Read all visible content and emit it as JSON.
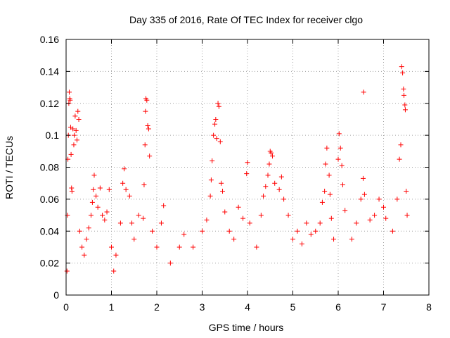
{
  "chart_data": {
    "type": "scatter",
    "title": "Day 335 of 2016, Rate Of TEC Index for receiver clgo",
    "xlabel": "GPS time / hours",
    "ylabel": "ROTI / TECUs",
    "xlim": [
      0,
      8
    ],
    "ylim": [
      0,
      0.16
    ],
    "grid": true,
    "marker": "plus",
    "color": "#ff0000",
    "x_ticks": [
      0,
      1,
      2,
      3,
      4,
      5,
      6,
      7,
      8
    ],
    "x_tick_labels": [
      "0",
      "1",
      "2",
      "3",
      "4",
      "5",
      "6",
      "7",
      "8"
    ],
    "y_ticks": [
      0,
      0.02,
      0.04,
      0.06,
      0.08,
      0.1,
      0.12,
      0.14,
      0.16
    ],
    "y_tick_labels": [
      "0",
      "0.02",
      "0.04",
      "0.06",
      "0.08",
      "0.1",
      "0.12",
      "0.14",
      "0.16"
    ],
    "series": [
      {
        "name": "ROTI",
        "points": [
          [
            0.02,
            0.015
          ],
          [
            0.03,
            0.05
          ],
          [
            0.04,
            0.085
          ],
          [
            0.05,
            0.1
          ],
          [
            0.06,
            0.12
          ],
          [
            0.07,
            0.127
          ],
          [
            0.08,
            0.123
          ],
          [
            0.09,
            0.122
          ],
          [
            0.1,
            0.105
          ],
          [
            0.11,
            0.088
          ],
          [
            0.12,
            0.067
          ],
          [
            0.13,
            0.065
          ],
          [
            0.15,
            0.104
          ],
          [
            0.17,
            0.094
          ],
          [
            0.18,
            0.1
          ],
          [
            0.2,
            0.112
          ],
          [
            0.22,
            0.103
          ],
          [
            0.24,
            0.097
          ],
          [
            0.26,
            0.115
          ],
          [
            0.28,
            0.11
          ],
          [
            0.3,
            0.04
          ],
          [
            0.35,
            0.03
          ],
          [
            0.4,
            0.025
          ],
          [
            0.45,
            0.035
          ],
          [
            0.5,
            0.042
          ],
          [
            0.55,
            0.05
          ],
          [
            0.58,
            0.058
          ],
          [
            0.6,
            0.066
          ],
          [
            0.62,
            0.075
          ],
          [
            0.66,
            0.062
          ],
          [
            0.7,
            0.055
          ],
          [
            0.75,
            0.067
          ],
          [
            0.8,
            0.05
          ],
          [
            0.85,
            0.047
          ],
          [
            0.9,
            0.052
          ],
          [
            0.95,
            0.066
          ],
          [
            1.0,
            0.03
          ],
          [
            1.05,
            0.015
          ],
          [
            1.1,
            0.025
          ],
          [
            1.2,
            0.045
          ],
          [
            1.25,
            0.07
          ],
          [
            1.28,
            0.079
          ],
          [
            1.32,
            0.066
          ],
          [
            1.4,
            0.062
          ],
          [
            1.45,
            0.045
          ],
          [
            1.5,
            0.035
          ],
          [
            1.6,
            0.05
          ],
          [
            1.7,
            0.048
          ],
          [
            1.72,
            0.069
          ],
          [
            1.74,
            0.094
          ],
          [
            1.75,
            0.115
          ],
          [
            1.76,
            0.123
          ],
          [
            1.78,
            0.122
          ],
          [
            1.8,
            0.106
          ],
          [
            1.82,
            0.104
          ],
          [
            1.84,
            0.087
          ],
          [
            1.9,
            0.04
          ],
          [
            2.0,
            0.03
          ],
          [
            2.1,
            0.045
          ],
          [
            2.15,
            0.056
          ],
          [
            2.3,
            0.02
          ],
          [
            2.5,
            0.03
          ],
          [
            2.6,
            0.038
          ],
          [
            2.8,
            0.03
          ],
          [
            3.0,
            0.04
          ],
          [
            3.1,
            0.047
          ],
          [
            3.18,
            0.062
          ],
          [
            3.2,
            0.072
          ],
          [
            3.22,
            0.084
          ],
          [
            3.25,
            0.1
          ],
          [
            3.28,
            0.107
          ],
          [
            3.3,
            0.11
          ],
          [
            3.32,
            0.098
          ],
          [
            3.35,
            0.12
          ],
          [
            3.37,
            0.118
          ],
          [
            3.4,
            0.096
          ],
          [
            3.42,
            0.07
          ],
          [
            3.45,
            0.065
          ],
          [
            3.5,
            0.052
          ],
          [
            3.6,
            0.04
          ],
          [
            3.7,
            0.035
          ],
          [
            3.8,
            0.055
          ],
          [
            3.9,
            0.048
          ],
          [
            3.98,
            0.076
          ],
          [
            4.0,
            0.083
          ],
          [
            4.05,
            0.045
          ],
          [
            4.2,
            0.03
          ],
          [
            4.3,
            0.05
          ],
          [
            4.35,
            0.062
          ],
          [
            4.4,
            0.068
          ],
          [
            4.45,
            0.075
          ],
          [
            4.48,
            0.082
          ],
          [
            4.5,
            0.09
          ],
          [
            4.52,
            0.089
          ],
          [
            4.55,
            0.087
          ],
          [
            4.6,
            0.07
          ],
          [
            4.7,
            0.066
          ],
          [
            4.75,
            0.074
          ],
          [
            4.8,
            0.06
          ],
          [
            4.9,
            0.05
          ],
          [
            5.0,
            0.035
          ],
          [
            5.1,
            0.04
          ],
          [
            5.2,
            0.032
          ],
          [
            5.3,
            0.045
          ],
          [
            5.4,
            0.038
          ],
          [
            5.5,
            0.04
          ],
          [
            5.6,
            0.045
          ],
          [
            5.65,
            0.058
          ],
          [
            5.7,
            0.065
          ],
          [
            5.72,
            0.082
          ],
          [
            5.75,
            0.092
          ],
          [
            5.8,
            0.075
          ],
          [
            5.82,
            0.063
          ],
          [
            5.85,
            0.048
          ],
          [
            5.9,
            0.035
          ],
          [
            6.0,
            0.085
          ],
          [
            6.02,
            0.101
          ],
          [
            6.05,
            0.092
          ],
          [
            6.08,
            0.081
          ],
          [
            6.1,
            0.069
          ],
          [
            6.15,
            0.053
          ],
          [
            6.3,
            0.035
          ],
          [
            6.4,
            0.045
          ],
          [
            6.5,
            0.06
          ],
          [
            6.55,
            0.073
          ],
          [
            6.56,
            0.127
          ],
          [
            6.58,
            0.063
          ],
          [
            6.7,
            0.047
          ],
          [
            6.8,
            0.05
          ],
          [
            6.9,
            0.06
          ],
          [
            7.0,
            0.055
          ],
          [
            7.05,
            0.048
          ],
          [
            7.2,
            0.04
          ],
          [
            7.3,
            0.06
          ],
          [
            7.35,
            0.085
          ],
          [
            7.38,
            0.094
          ],
          [
            7.4,
            0.143
          ],
          [
            7.42,
            0.139
          ],
          [
            7.44,
            0.129
          ],
          [
            7.45,
            0.125
          ],
          [
            7.47,
            0.119
          ],
          [
            7.48,
            0.116
          ],
          [
            7.5,
            0.065
          ],
          [
            7.52,
            0.05
          ]
        ]
      }
    ]
  }
}
